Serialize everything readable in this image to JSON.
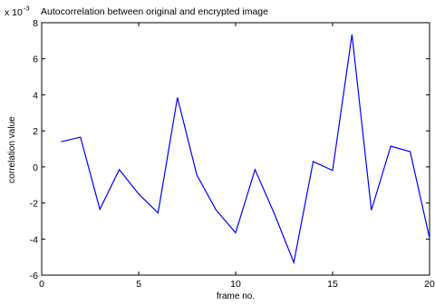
{
  "chart_data": {
    "type": "line",
    "title": "Autocorrelation between original and encrypted image",
    "exponent_label": "x 10",
    "exponent_power": "-3",
    "xlabel": "frame no.",
    "ylabel": "correlation value",
    "xlim": [
      0,
      20
    ],
    "ylim": [
      -6,
      8
    ],
    "xticks": [
      0,
      5,
      10,
      15,
      20
    ],
    "yticks": [
      -6,
      -4,
      -2,
      0,
      2,
      4,
      6,
      8
    ],
    "xtick_labels": [
      "0",
      "5",
      "10",
      "15",
      "20"
    ],
    "ytick_labels": [
      "-6",
      "-4",
      "-2",
      "0",
      "2",
      "4",
      "6",
      "8"
    ],
    "grid": false,
    "colors": {
      "line": "#0000ff",
      "axes": "#000000"
    },
    "series": [
      {
        "x": [
          1,
          2,
          3,
          4,
          5,
          6,
          7,
          8,
          9,
          10,
          11,
          12,
          13,
          14,
          15,
          16,
          17,
          18,
          19,
          20
        ],
        "values": [
          1.4,
          1.65,
          -2.35,
          -0.15,
          -1.5,
          -2.55,
          3.85,
          -0.45,
          -2.4,
          -3.65,
          -0.15,
          -2.6,
          -5.3,
          0.3,
          -0.2,
          7.35,
          -2.4,
          1.15,
          0.85,
          -3.95
        ]
      }
    ]
  }
}
